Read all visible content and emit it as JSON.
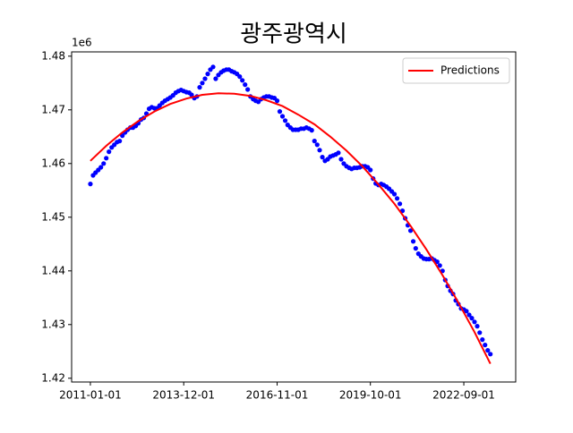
{
  "chart_data": {
    "type": "scatter-line",
    "title": "광주광역시",
    "y_offset_label": "1e6",
    "xlim": [
      "2010-06-01",
      "2024-04-15"
    ],
    "xticks": [
      "2011-01-01",
      "2013-12-01",
      "2016-11-01",
      "2019-10-01",
      "2022-09-01"
    ],
    "ylim": [
      1.4193,
      1.4808
    ],
    "yticks": [
      1.42,
      1.43,
      1.44,
      1.45,
      1.46,
      1.47,
      1.48
    ],
    "legend": "upper right",
    "series": [
      {
        "kind": "scatter",
        "color": "#0000ff",
        "x": [
          "2011-01-01",
          "2011-02-01",
          "2011-03-01",
          "2011-04-01",
          "2011-05-01",
          "2011-06-01",
          "2011-07-01",
          "2011-08-01",
          "2011-09-01",
          "2011-10-01",
          "2011-11-01",
          "2011-12-01",
          "2012-01-01",
          "2012-02-01",
          "2012-03-01",
          "2012-04-01",
          "2012-05-01",
          "2012-06-01",
          "2012-07-01",
          "2012-08-01",
          "2012-09-01",
          "2012-10-01",
          "2012-11-01",
          "2012-12-01",
          "2013-01-01",
          "2013-02-01",
          "2013-03-01",
          "2013-04-01",
          "2013-05-01",
          "2013-06-01",
          "2013-07-01",
          "2013-08-01",
          "2013-09-01",
          "2013-10-01",
          "2013-11-01",
          "2013-12-01",
          "2014-01-01",
          "2014-02-01",
          "2014-03-01",
          "2014-04-01",
          "2014-05-01",
          "2014-06-01",
          "2014-07-01",
          "2014-08-01",
          "2014-09-01",
          "2014-10-01",
          "2014-11-01",
          "2014-12-01",
          "2015-01-01",
          "2015-02-01",
          "2015-03-01",
          "2015-04-01",
          "2015-05-01",
          "2015-06-01",
          "2015-07-01",
          "2015-08-01",
          "2015-09-01",
          "2015-10-01",
          "2015-11-01",
          "2015-12-01",
          "2016-01-01",
          "2016-02-01",
          "2016-03-01",
          "2016-04-01",
          "2016-05-01",
          "2016-06-01",
          "2016-07-01",
          "2016-08-01",
          "2016-09-01",
          "2016-10-01",
          "2016-11-01",
          "2016-12-01",
          "2017-01-01",
          "2017-02-01",
          "2017-03-01",
          "2017-04-01",
          "2017-05-01",
          "2017-06-01",
          "2017-07-01",
          "2017-08-01",
          "2017-09-01",
          "2017-10-01",
          "2017-11-01",
          "2017-12-01",
          "2018-01-01",
          "2018-02-01",
          "2018-03-01",
          "2018-04-01",
          "2018-05-01",
          "2018-06-01",
          "2018-07-01",
          "2018-08-01",
          "2018-09-01",
          "2018-10-01",
          "2018-11-01",
          "2018-12-01",
          "2019-01-01",
          "2019-02-01",
          "2019-03-01",
          "2019-04-01",
          "2019-05-01",
          "2019-06-01",
          "2019-07-01",
          "2019-08-01",
          "2019-09-01",
          "2019-10-01",
          "2019-11-01",
          "2019-12-01",
          "2020-01-01",
          "2020-02-01",
          "2020-03-01",
          "2020-04-01",
          "2020-05-01",
          "2020-06-01",
          "2020-07-01",
          "2020-08-01",
          "2020-09-01",
          "2020-10-01",
          "2020-11-01",
          "2020-12-01",
          "2021-01-01",
          "2021-02-01",
          "2021-03-01",
          "2021-04-01",
          "2021-05-01",
          "2021-06-01",
          "2021-07-01",
          "2021-08-01",
          "2021-09-01",
          "2021-10-01",
          "2021-11-01",
          "2021-12-01",
          "2022-01-01",
          "2022-02-01",
          "2022-03-01",
          "2022-04-01",
          "2022-05-01",
          "2022-06-01",
          "2022-07-01",
          "2022-08-01",
          "2022-09-01",
          "2022-10-01",
          "2022-11-01",
          "2022-12-01",
          "2023-01-01",
          "2023-02-01",
          "2023-03-01",
          "2023-04-01",
          "2023-05-01",
          "2023-06-01",
          "2023-07-01"
        ],
        "values": [
          1.4562,
          1.4578,
          1.4583,
          1.4588,
          1.4593,
          1.46,
          1.461,
          1.4622,
          1.463,
          1.4635,
          1.464,
          1.4642,
          1.4652,
          1.4658,
          1.4663,
          1.4667,
          1.4667,
          1.467,
          1.4675,
          1.4682,
          1.4685,
          1.4693,
          1.4702,
          1.4705,
          1.4703,
          1.4703,
          1.4708,
          1.4713,
          1.4717,
          1.472,
          1.4723,
          1.4727,
          1.4732,
          1.4735,
          1.4737,
          1.4735,
          1.4733,
          1.4732,
          1.4728,
          1.4722,
          1.4725,
          1.4742,
          1.475,
          1.4758,
          1.4767,
          1.4775,
          1.478,
          1.4758,
          1.4765,
          1.477,
          1.4773,
          1.4775,
          1.4775,
          1.4772,
          1.477,
          1.4767,
          1.4762,
          1.4755,
          1.4747,
          1.4738,
          1.4725,
          1.472,
          1.4717,
          1.4715,
          1.472,
          1.4723,
          1.4725,
          1.4725,
          1.4723,
          1.4722,
          1.4717,
          1.4697,
          1.4688,
          1.468,
          1.4672,
          1.4667,
          1.4663,
          1.4663,
          1.4663,
          1.4665,
          1.4665,
          1.4667,
          1.4665,
          1.4662,
          1.4642,
          1.4635,
          1.4625,
          1.4612,
          1.4605,
          1.4608,
          1.4613,
          1.4615,
          1.4617,
          1.462,
          1.4608,
          1.46,
          1.4595,
          1.4592,
          1.459,
          1.4592,
          1.4592,
          1.4593,
          1.4595,
          1.4595,
          1.4593,
          1.4588,
          1.4572,
          1.4563,
          1.456,
          1.4562,
          1.456,
          1.4557,
          1.4553,
          1.4548,
          1.4543,
          1.4535,
          1.4525,
          1.4512,
          1.4498,
          1.4485,
          1.4475,
          1.4455,
          1.4442,
          1.4432,
          1.4427,
          1.4423,
          1.4422,
          1.4422,
          1.4423,
          1.442,
          1.4417,
          1.441,
          1.44,
          1.4383,
          1.4372,
          1.4363,
          1.4357,
          1.4345,
          1.4338,
          1.433,
          1.4328,
          1.4325,
          1.4318,
          1.4312,
          1.4305,
          1.4297,
          1.4285,
          1.4272,
          1.4262,
          1.4252,
          1.4245
        ]
      },
      {
        "kind": "line",
        "name": "Predictions",
        "color": "#ff0000",
        "x": [
          "2011-01-01",
          "2011-07-01",
          "2012-01-01",
          "2012-07-01",
          "2013-01-01",
          "2013-07-01",
          "2014-01-01",
          "2014-07-01",
          "2015-01-01",
          "2015-07-01",
          "2016-01-01",
          "2016-07-01",
          "2017-01-01",
          "2017-07-01",
          "2018-01-01",
          "2018-07-01",
          "2019-01-01",
          "2019-07-01",
          "2020-01-01",
          "2020-07-01",
          "2021-01-01",
          "2021-07-01",
          "2022-01-01",
          "2022-07-01",
          "2023-01-01",
          "2023-07-01"
        ],
        "values": [
          1.4605,
          1.4633,
          1.4658,
          1.4679,
          1.4697,
          1.4711,
          1.4721,
          1.4728,
          1.4731,
          1.473,
          1.4726,
          1.4718,
          1.4707,
          1.4691,
          1.4673,
          1.465,
          1.4624,
          1.4595,
          1.4561,
          1.4525,
          1.4484,
          1.444,
          1.4392,
          1.4341,
          1.4286,
          1.4227
        ]
      }
    ]
  }
}
